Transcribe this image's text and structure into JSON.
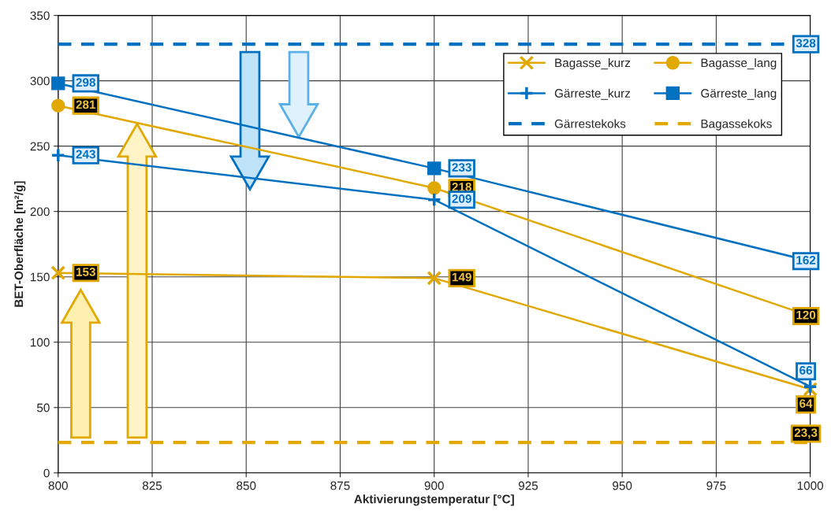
{
  "chart_data": {
    "type": "line",
    "xlabel": "Aktivierungstemperatur [°C]",
    "ylabel": "BET-Oberfläche [m²/g]",
    "x": [
      800,
      900,
      1000
    ],
    "series": [
      {
        "name": "Bagasse_kurz",
        "color": "#e0a800",
        "marker": "cross",
        "values": [
          153,
          149,
          64
        ],
        "value_labels": [
          "153",
          "149",
          "64"
        ]
      },
      {
        "name": "Bagasse_lang",
        "color": "#e0a800",
        "marker": "circle",
        "values": [
          281,
          218,
          120
        ],
        "value_labels": [
          "281",
          "218",
          "120"
        ]
      },
      {
        "name": "Gärreste_kurz",
        "color": "#0070c0",
        "marker": "plus",
        "values": [
          243,
          209,
          66
        ],
        "value_labels": [
          "243",
          "209",
          "66"
        ]
      },
      {
        "name": "Gärreste_lang",
        "color": "#0070c0",
        "marker": "square",
        "values": [
          298,
          233,
          162
        ],
        "value_labels": [
          "298",
          "233",
          "162"
        ]
      },
      {
        "name": "Gärrestekoks",
        "color": "#0070c0",
        "marker": "none",
        "line_style": "dashed",
        "values": [
          328,
          328,
          328
        ],
        "value_labels": [
          null,
          null,
          "328"
        ]
      },
      {
        "name": "Bagassekoks",
        "color": "#e0a800",
        "marker": "none",
        "line_style": "dashed",
        "values": [
          23.3,
          23.3,
          23.3
        ],
        "value_labels": [
          null,
          null,
          "23,3"
        ]
      }
    ],
    "xlim": [
      800,
      1000
    ],
    "xticks": [
      800,
      825,
      850,
      875,
      900,
      925,
      950,
      975,
      1000
    ],
    "ylim": [
      0,
      350
    ],
    "yticks": [
      0,
      50,
      100,
      150,
      200,
      250,
      300,
      350
    ],
    "grid": true,
    "legend": "top right"
  }
}
